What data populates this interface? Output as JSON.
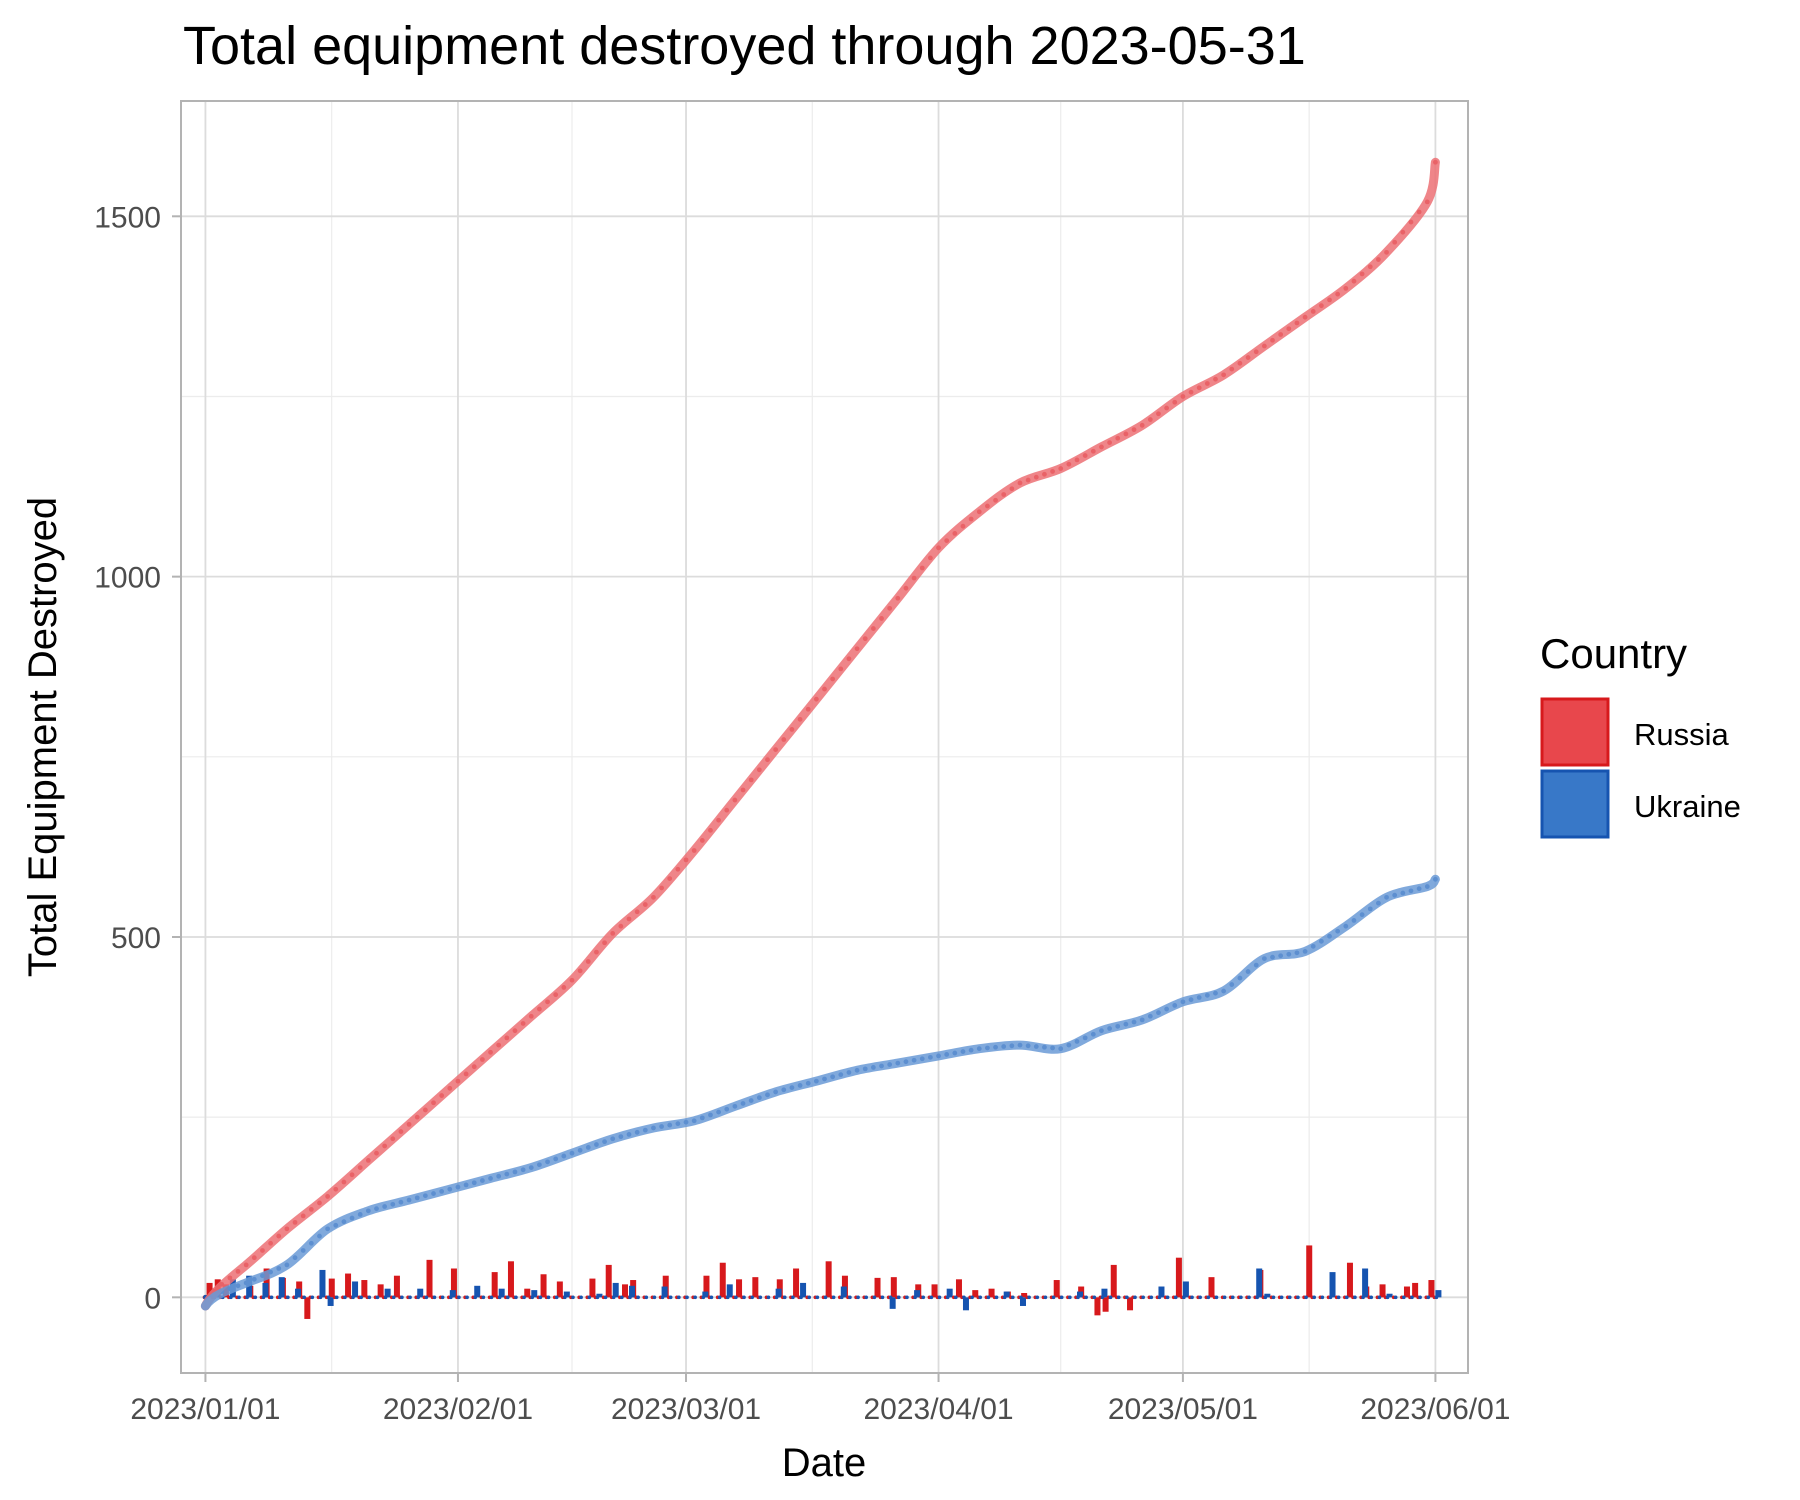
{
  "chart_data": {
    "type": "line",
    "title": "Total equipment destroyed through 2023-05-31",
    "xlabel": "Date",
    "ylabel": "Total Equipment Destroyed",
    "x_range_days": [
      -3,
      155
    ],
    "ylim": [
      -105,
      1660
    ],
    "x_ticks": [
      {
        "label": "2023/01/01",
        "day": 0
      },
      {
        "label": "2023/02/01",
        "day": 31
      },
      {
        "label": "2023/03/01",
        "day": 59
      },
      {
        "label": "2023/04/01",
        "day": 90
      },
      {
        "label": "2023/05/01",
        "day": 120
      },
      {
        "label": "2023/06/01",
        "day": 151
      }
    ],
    "x_minor_ticks": [
      15.5,
      45,
      74.5,
      105,
      135.5
    ],
    "y_ticks": [
      0,
      500,
      1000,
      1500
    ],
    "y_minor_ticks": [
      250,
      750,
      1250
    ],
    "legend": {
      "title": "Country",
      "position": "right",
      "entries": [
        "Russia",
        "Ukraine"
      ]
    },
    "colors": {
      "Russia": {
        "fill": "#e8474c",
        "stroke": "#d7191c",
        "line": "#ec7074"
      },
      "Ukraine": {
        "fill": "#3878c8",
        "stroke": "#1654b0",
        "line": "#6a9ad6"
      }
    },
    "series": [
      {
        "name": "Russia",
        "cumulative": [
          [
            0,
            0
          ],
          [
            5,
            45
          ],
          [
            10,
            95
          ],
          [
            15,
            140
          ],
          [
            20,
            190
          ],
          [
            25,
            240
          ],
          [
            30,
            290
          ],
          [
            35,
            340
          ],
          [
            40,
            390
          ],
          [
            45,
            440
          ],
          [
            50,
            505
          ],
          [
            55,
            555
          ],
          [
            60,
            620
          ],
          [
            65,
            690
          ],
          [
            70,
            760
          ],
          [
            75,
            830
          ],
          [
            80,
            900
          ],
          [
            85,
            970
          ],
          [
            90,
            1040
          ],
          [
            95,
            1090
          ],
          [
            100,
            1130
          ],
          [
            105,
            1150
          ],
          [
            110,
            1180
          ],
          [
            115,
            1210
          ],
          [
            120,
            1250
          ],
          [
            125,
            1280
          ],
          [
            130,
            1320
          ],
          [
            135,
            1360
          ],
          [
            140,
            1400
          ],
          [
            145,
            1450
          ],
          [
            150,
            1520
          ],
          [
            151,
            1575
          ]
        ],
        "daily": [
          [
            1,
            20
          ],
          [
            2,
            25
          ],
          [
            3,
            18
          ],
          [
            6,
            16
          ],
          [
            8,
            40
          ],
          [
            10,
            27
          ],
          [
            12,
            22
          ],
          [
            13,
            -30
          ],
          [
            16,
            26
          ],
          [
            18,
            33
          ],
          [
            20,
            24
          ],
          [
            22,
            18
          ],
          [
            24,
            30
          ],
          [
            28,
            52
          ],
          [
            31,
            40
          ],
          [
            36,
            35
          ],
          [
            38,
            50
          ],
          [
            40,
            12
          ],
          [
            42,
            32
          ],
          [
            44,
            22
          ],
          [
            48,
            26
          ],
          [
            50,
            45
          ],
          [
            52,
            18
          ],
          [
            53,
            24
          ],
          [
            57,
            30
          ],
          [
            62,
            30
          ],
          [
            64,
            48
          ],
          [
            66,
            25
          ],
          [
            68,
            28
          ],
          [
            71,
            25
          ],
          [
            73,
            40
          ],
          [
            77,
            50
          ],
          [
            79,
            30
          ],
          [
            83,
            27
          ],
          [
            85,
            28
          ],
          [
            88,
            18
          ],
          [
            90,
            18
          ],
          [
            93,
            25
          ],
          [
            95,
            10
          ],
          [
            97,
            12
          ],
          [
            99,
            8
          ],
          [
            101,
            6
          ],
          [
            105,
            24
          ],
          [
            108,
            15
          ],
          [
            110,
            -25
          ],
          [
            111,
            -20
          ],
          [
            112,
            45
          ],
          [
            114,
            -18
          ],
          [
            120,
            55
          ],
          [
            124,
            28
          ],
          [
            130,
            38
          ],
          [
            136,
            72
          ],
          [
            141,
            48
          ],
          [
            143,
            15
          ],
          [
            145,
            18
          ],
          [
            148,
            15
          ],
          [
            149,
            20
          ],
          [
            151,
            24
          ]
        ]
      },
      {
        "name": "Ukraine",
        "cumulative": [
          [
            0,
            0
          ],
          [
            5,
            20
          ],
          [
            10,
            45
          ],
          [
            15,
            95
          ],
          [
            20,
            120
          ],
          [
            25,
            135
          ],
          [
            30,
            150
          ],
          [
            35,
            165
          ],
          [
            40,
            180
          ],
          [
            45,
            200
          ],
          [
            50,
            220
          ],
          [
            55,
            235
          ],
          [
            60,
            245
          ],
          [
            65,
            265
          ],
          [
            70,
            285
          ],
          [
            75,
            300
          ],
          [
            80,
            315
          ],
          [
            85,
            325
          ],
          [
            90,
            335
          ],
          [
            95,
            345
          ],
          [
            100,
            350
          ],
          [
            105,
            345
          ],
          [
            110,
            370
          ],
          [
            115,
            385
          ],
          [
            120,
            410
          ],
          [
            125,
            425
          ],
          [
            130,
            470
          ],
          [
            135,
            480
          ],
          [
            140,
            515
          ],
          [
            145,
            555
          ],
          [
            150,
            570
          ],
          [
            151,
            580
          ]
        ],
        "daily": [
          [
            1,
            5
          ],
          [
            3,
            25
          ],
          [
            5,
            30
          ],
          [
            7,
            20
          ],
          [
            9,
            28
          ],
          [
            11,
            12
          ],
          [
            14,
            38
          ],
          [
            15,
            -12
          ],
          [
            18,
            22
          ],
          [
            22,
            12
          ],
          [
            26,
            12
          ],
          [
            30,
            10
          ],
          [
            33,
            16
          ],
          [
            36,
            12
          ],
          [
            40,
            10
          ],
          [
            44,
            8
          ],
          [
            48,
            5
          ],
          [
            50,
            20
          ],
          [
            52,
            16
          ],
          [
            56,
            15
          ],
          [
            61,
            8
          ],
          [
            64,
            18
          ],
          [
            70,
            12
          ],
          [
            73,
            20
          ],
          [
            78,
            15
          ],
          [
            84,
            -16
          ],
          [
            87,
            10
          ],
          [
            91,
            12
          ],
          [
            93,
            -18
          ],
          [
            98,
            8
          ],
          [
            100,
            -12
          ],
          [
            107,
            8
          ],
          [
            110,
            12
          ],
          [
            117,
            15
          ],
          [
            120,
            22
          ],
          [
            129,
            40
          ],
          [
            130,
            5
          ],
          [
            138,
            35
          ],
          [
            142,
            40
          ],
          [
            145,
            5
          ],
          [
            151,
            10
          ]
        ]
      }
    ]
  }
}
